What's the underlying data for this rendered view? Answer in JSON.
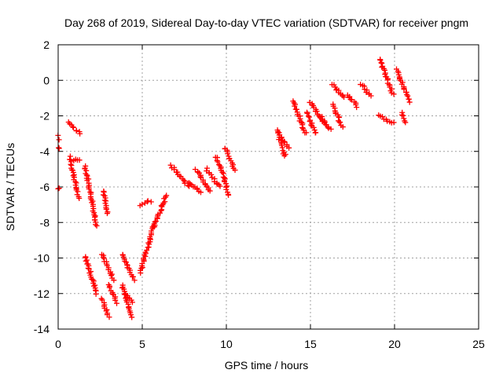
{
  "chart_data": {
    "type": "scatter",
    "title": "Day 268 of 2019, Sidereal Day-to-day VTEC variation (SDTVAR) for receiver pngm",
    "xlabel": "GPS time / hours",
    "ylabel": "SDTVAR / TECUs",
    "xlim": [
      0,
      25
    ],
    "ylim": [
      -14,
      2
    ],
    "xticks": [
      "0",
      "5",
      "10",
      "15",
      "20",
      "25"
    ],
    "yticks": [
      "2",
      "0",
      "-2",
      "-4",
      "-6",
      "-8",
      "-10",
      "-12",
      "-14"
    ],
    "xtick_values": [
      0,
      5,
      10,
      15,
      20,
      25
    ],
    "ytick_values": [
      2,
      0,
      -2,
      -4,
      -6,
      -8,
      -10,
      -12,
      -14
    ],
    "grid": true,
    "marker": "plus",
    "color": "#ff0000",
    "segments": [
      {
        "x": [
          0.0,
          0.1
        ],
        "y": [
          -6.1,
          -6.1
        ]
      },
      {
        "x": [
          0.0,
          0.1
        ],
        "y": [
          -3.1,
          -3.3
        ]
      },
      {
        "x": [
          0.02,
          0.08
        ],
        "y": [
          -3.8,
          -3.8
        ]
      },
      {
        "x": [
          0.6,
          1.3
        ],
        "y": [
          -2.4,
          -3.0
        ]
      },
      {
        "x": [
          0.7,
          1.2
        ],
        "y": [
          -4.3,
          -6.6
        ]
      },
      {
        "x": [
          0.9,
          1.3
        ],
        "y": [
          -4.5,
          -4.5
        ]
      },
      {
        "x": [
          1.6,
          2.3
        ],
        "y": [
          -4.8,
          -8.2
        ]
      },
      {
        "x": [
          2.7,
          2.9
        ],
        "y": [
          -6.2,
          -7.5
        ]
      },
      {
        "x": [
          1.6,
          2.3
        ],
        "y": [
          -9.9,
          -12.0
        ]
      },
      {
        "x": [
          2.6,
          3.3
        ],
        "y": [
          -9.8,
          -11.2
        ]
      },
      {
        "x": [
          2.6,
          3.0
        ],
        "y": [
          -12.3,
          -13.3
        ]
      },
      {
        "x": [
          3.0,
          3.5
        ],
        "y": [
          -11.5,
          -12.5
        ]
      },
      {
        "x": [
          3.8,
          4.5
        ],
        "y": [
          -9.8,
          -11.2
        ]
      },
      {
        "x": [
          3.8,
          4.4
        ],
        "y": [
          -11.5,
          -13.3
        ]
      },
      {
        "x": [
          4.0,
          4.4
        ],
        "y": [
          -12.0,
          -12.5
        ]
      },
      {
        "x": [
          4.9,
          5.7
        ],
        "y": [
          -10.8,
          -8.1
        ]
      },
      {
        "x": [
          4.9,
          5.5
        ],
        "y": [
          -7.0,
          -6.8
        ]
      },
      {
        "x": [
          5.7,
          6.4
        ],
        "y": [
          -8.3,
          -6.5
        ]
      },
      {
        "x": [
          6.7,
          7.8
        ],
        "y": [
          -4.8,
          -6.0
        ]
      },
      {
        "x": [
          7.8,
          8.5
        ],
        "y": [
          -5.8,
          -6.3
        ]
      },
      {
        "x": [
          8.2,
          9.0
        ],
        "y": [
          -5.0,
          -6.2
        ]
      },
      {
        "x": [
          8.8,
          9.6
        ],
        "y": [
          -5.0,
          -6.0
        ]
      },
      {
        "x": [
          9.4,
          9.9
        ],
        "y": [
          -4.3,
          -5.5
        ]
      },
      {
        "x": [
          9.9,
          10.5
        ],
        "y": [
          -3.8,
          -5.0
        ]
      },
      {
        "x": [
          9.9,
          10.1
        ],
        "y": [
          -5.5,
          -6.5
        ]
      },
      {
        "x": [
          13.0,
          13.5
        ],
        "y": [
          -2.8,
          -4.3
        ]
      },
      {
        "x": [
          13.1,
          13.7
        ],
        "y": [
          -3.0,
          -3.8
        ]
      },
      {
        "x": [
          14.0,
          14.7
        ],
        "y": [
          -1.2,
          -3.0
        ]
      },
      {
        "x": [
          14.8,
          15.3
        ],
        "y": [
          -1.8,
          -3.0
        ]
      },
      {
        "x": [
          15.0,
          15.8
        ],
        "y": [
          -1.2,
          -2.4
        ]
      },
      {
        "x": [
          15.6,
          16.2
        ],
        "y": [
          -2.0,
          -2.8
        ]
      },
      {
        "x": [
          16.3,
          16.9
        ],
        "y": [
          -1.4,
          -2.6
        ]
      },
      {
        "x": [
          16.3,
          17.0
        ],
        "y": [
          -0.2,
          -1.0
        ]
      },
      {
        "x": [
          17.2,
          17.8
        ],
        "y": [
          -0.8,
          -1.5
        ]
      },
      {
        "x": [
          18.0,
          18.6
        ],
        "y": [
          -0.2,
          -0.9
        ]
      },
      {
        "x": [
          19.1,
          19.9
        ],
        "y": [
          1.2,
          -0.8
        ]
      },
      {
        "x": [
          19.1,
          19.9
        ],
        "y": [
          -2.0,
          -2.4
        ]
      },
      {
        "x": [
          20.1,
          20.9
        ],
        "y": [
          0.6,
          -1.2
        ]
      },
      {
        "x": [
          20.4,
          20.6
        ],
        "y": [
          -1.8,
          -2.4
        ]
      }
    ]
  }
}
